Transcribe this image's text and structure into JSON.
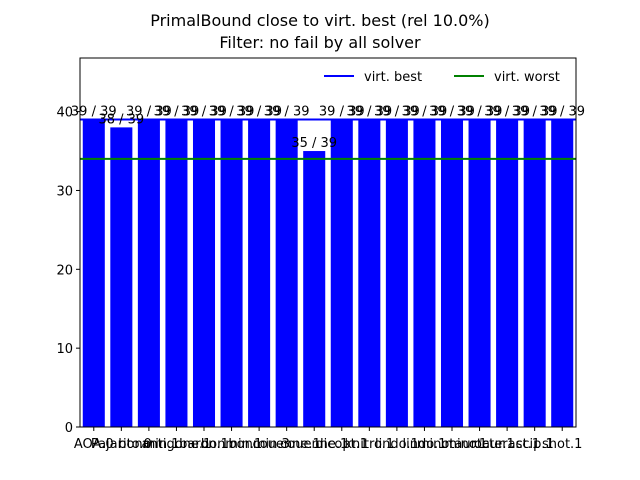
{
  "chart_data": {
    "type": "bar",
    "title": [
      "PrimalBound close to virt. best (rel 10.0%)",
      "Filter: no fail by all solver"
    ],
    "xlabel": "",
    "ylabel": "",
    "categories": [
      "AOA.0",
      "Pajarito.0",
      "bonmin.1",
      "antigone.1",
      "baron.1",
      "bonmin.1",
      "bonmin.3",
      "couenne.1",
      "couenne.1",
      "dicopt.1",
      "knitro.1",
      "lindo.1",
      "lindo.1",
      "minotaur.1",
      "minotaur.1",
      "octeract.1",
      "scip.1",
      "shot.1"
    ],
    "values": [
      39,
      38,
      39,
      39,
      39,
      39,
      39,
      39,
      35,
      39,
      39,
      39,
      39,
      39,
      39,
      39,
      39,
      39
    ],
    "data_labels": [
      "39 / 39",
      "38 / 39",
      "39 / 39",
      "39 / 39",
      "39 / 39",
      "39 / 39",
      "39 / 39",
      "39 / 39",
      "35 / 39",
      "39 / 39",
      "39 / 39",
      "39 / 39",
      "39 / 39",
      "39 / 39",
      "39 / 39",
      "39 / 39",
      "39 / 39",
      "39 / 39"
    ],
    "ylim": [
      0,
      46.8
    ],
    "yticks": [
      0,
      10,
      20,
      30,
      40
    ],
    "bar_color": "#0000ff",
    "reference_lines": [
      {
        "name": "virt. best",
        "value": 39,
        "color": "#0000ff"
      },
      {
        "name": "virt. worst",
        "value": 34,
        "color": "#008000"
      }
    ],
    "legend_position": "top-right",
    "grid": false
  }
}
